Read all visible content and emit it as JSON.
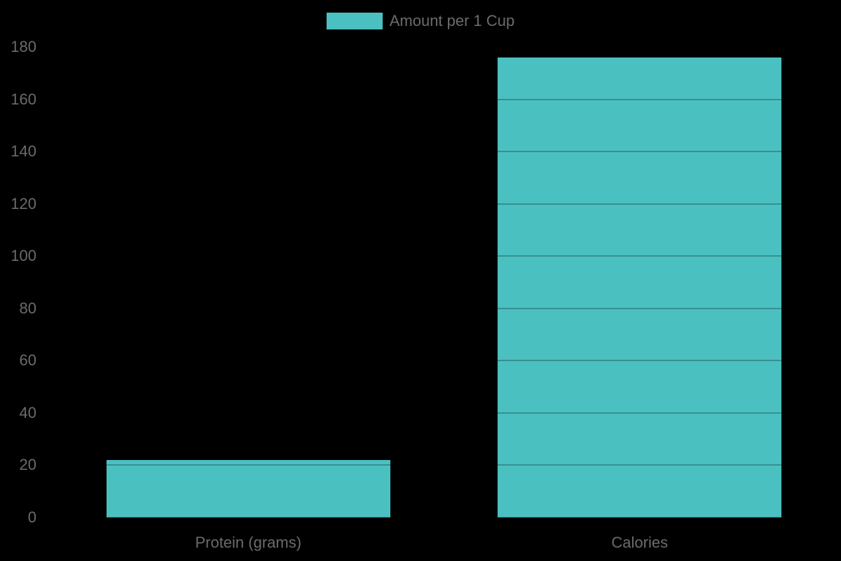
{
  "page": {
    "background": "#000000"
  },
  "legend": {
    "label": "Amount per 1 Cup"
  },
  "chart_data": {
    "type": "bar",
    "title": "",
    "xlabel": "",
    "ylabel": "",
    "categories": [
      "Protein (grams)",
      "Calories"
    ],
    "series": [
      {
        "name": "Amount per 1 Cup",
        "color": "#4BC0C0",
        "values": [
          22,
          176
        ]
      }
    ],
    "ylim": [
      0,
      180
    ],
    "yticks": [
      0,
      20,
      40,
      60,
      80,
      100,
      120,
      140,
      160,
      180
    ],
    "grid": true,
    "legend_position": "top",
    "colors": {
      "bar": "#4BC0C0",
      "text": "#6B6B6B",
      "gridline": "rgba(0,0,0,0.25)",
      "background": "#000000"
    }
  }
}
